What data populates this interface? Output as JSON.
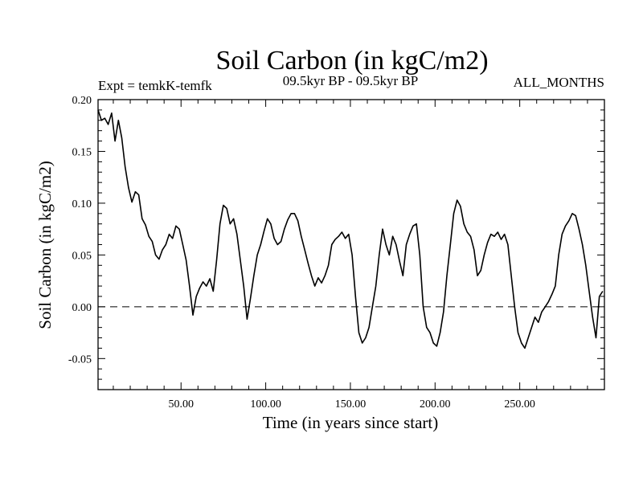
{
  "chart_data": {
    "type": "line",
    "title": "Soil Carbon (in kgC/m2)",
    "subtitle_left": "Expt = temkK-temfk",
    "subtitle_center": "09.5kyr BP - 09.5kyr BP",
    "subtitle_right": "ALL_MONTHS",
    "xlabel": "Time (in years since start)",
    "ylabel": "Soil Carbon (in kgC/m2)",
    "xlim": [
      1,
      300
    ],
    "ylim": [
      -0.08,
      0.2
    ],
    "xticks": [
      50,
      100,
      150,
      200,
      250
    ],
    "xtick_labels": [
      "50.00",
      "100.00",
      "150.00",
      "200.00",
      "250.00"
    ],
    "yticks": [
      -0.05,
      0.0,
      0.05,
      0.1,
      0.15,
      0.2
    ],
    "ytick_labels": [
      "-0.05",
      "0.00",
      "0.05",
      "0.10",
      "0.15",
      "0.20"
    ],
    "reference_line": {
      "y": 0.0,
      "style": "dashed"
    },
    "series": [
      {
        "name": "Soil Carbon",
        "color": "#000000",
        "x": [
          1,
          3,
          5,
          7,
          9,
          11,
          13,
          15,
          17,
          19,
          21,
          23,
          25,
          27,
          29,
          31,
          33,
          35,
          37,
          39,
          41,
          43,
          45,
          47,
          49,
          51,
          53,
          55,
          57,
          59,
          61,
          63,
          65,
          67,
          69,
          71,
          73,
          75,
          77,
          79,
          81,
          83,
          85,
          87,
          89,
          91,
          93,
          95,
          97,
          99,
          101,
          103,
          105,
          107,
          109,
          111,
          113,
          115,
          117,
          119,
          121,
          123,
          125,
          127,
          129,
          131,
          133,
          135,
          137,
          139,
          141,
          143,
          145,
          147,
          149,
          151,
          153,
          155,
          157,
          159,
          161,
          163,
          165,
          167,
          169,
          171,
          173,
          175,
          177,
          179,
          181,
          183,
          185,
          187,
          189,
          191,
          193,
          195,
          197,
          199,
          201,
          203,
          205,
          207,
          209,
          211,
          213,
          215,
          217,
          219,
          221,
          223,
          225,
          227,
          229,
          231,
          233,
          235,
          237,
          239,
          241,
          243,
          245,
          247,
          249,
          251,
          253,
          255,
          257,
          259,
          261,
          263,
          265,
          267,
          269,
          271,
          273,
          275,
          277,
          279,
          281,
          283,
          285,
          287,
          289,
          291,
          293,
          295,
          297,
          299
        ],
        "values": [
          0.19,
          0.18,
          0.182,
          0.176,
          0.187,
          0.16,
          0.18,
          0.163,
          0.135,
          0.115,
          0.101,
          0.111,
          0.108,
          0.085,
          0.079,
          0.068,
          0.063,
          0.05,
          0.046,
          0.055,
          0.06,
          0.07,
          0.066,
          0.078,
          0.075,
          0.06,
          0.045,
          0.02,
          -0.008,
          0.01,
          0.018,
          0.024,
          0.02,
          0.027,
          0.015,
          0.045,
          0.08,
          0.098,
          0.095,
          0.08,
          0.085,
          0.07,
          0.045,
          0.02,
          -0.012,
          0.008,
          0.03,
          0.05,
          0.06,
          0.073,
          0.085,
          0.08,
          0.066,
          0.06,
          0.063,
          0.075,
          0.084,
          0.09,
          0.09,
          0.083,
          0.068,
          0.055,
          0.042,
          0.03,
          0.02,
          0.028,
          0.023,
          0.03,
          0.04,
          0.06,
          0.065,
          0.068,
          0.072,
          0.066,
          0.07,
          0.05,
          0.01,
          -0.025,
          -0.035,
          -0.03,
          -0.02,
          0.0,
          0.02,
          0.05,
          0.075,
          0.06,
          0.05,
          0.068,
          0.06,
          0.044,
          0.03,
          0.06,
          0.07,
          0.078,
          0.08,
          0.05,
          0.0,
          -0.02,
          -0.025,
          -0.035,
          -0.038,
          -0.025,
          -0.005,
          0.03,
          0.06,
          0.09,
          0.103,
          0.097,
          0.08,
          0.072,
          0.068,
          0.055,
          0.03,
          0.035,
          0.05,
          0.062,
          0.07,
          0.068,
          0.072,
          0.065,
          0.07,
          0.06,
          0.03,
          0.0,
          -0.025,
          -0.035,
          -0.04,
          -0.03,
          -0.02,
          -0.01,
          -0.015,
          -0.005,
          0.0,
          0.005,
          0.012,
          0.02,
          0.05,
          0.07,
          0.078,
          0.083,
          0.09,
          0.088,
          0.075,
          0.06,
          0.04,
          0.015,
          -0.01,
          -0.03,
          0.01,
          0.015
        ]
      }
    ]
  }
}
